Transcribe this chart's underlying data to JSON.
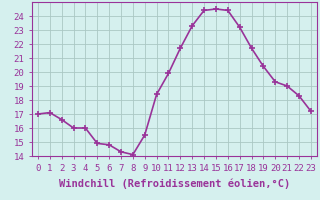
{
  "x": [
    0,
    1,
    2,
    3,
    4,
    5,
    6,
    7,
    8,
    9,
    10,
    11,
    12,
    13,
    14,
    15,
    16,
    17,
    18,
    19,
    20,
    21,
    22,
    23
  ],
  "y": [
    17,
    17.1,
    16.6,
    16.0,
    16.0,
    14.9,
    14.8,
    14.3,
    14.1,
    15.5,
    18.4,
    19.9,
    21.7,
    23.3,
    24.4,
    24.5,
    24.4,
    23.2,
    21.7,
    20.4,
    19.3,
    19.0,
    18.3,
    17.2
  ],
  "xlim": [
    -0.5,
    23.5
  ],
  "ylim": [
    14,
    25
  ],
  "yticks": [
    14,
    15,
    16,
    17,
    18,
    19,
    20,
    21,
    22,
    23,
    24
  ],
  "xticks": [
    0,
    1,
    2,
    3,
    4,
    5,
    6,
    7,
    8,
    9,
    10,
    11,
    12,
    13,
    14,
    15,
    16,
    17,
    18,
    19,
    20,
    21,
    22,
    23
  ],
  "line_color": "#993399",
  "marker": "+",
  "marker_size": 4,
  "bg_color": "#d5f0ee",
  "grid_color": "#aac8c4",
  "xlabel": "Windchill (Refroidissement éolien,°C)",
  "xlabel_fontsize": 7.5,
  "tick_fontsize": 6.5,
  "line_width": 1.2,
  "title_bg": "#9933aa"
}
